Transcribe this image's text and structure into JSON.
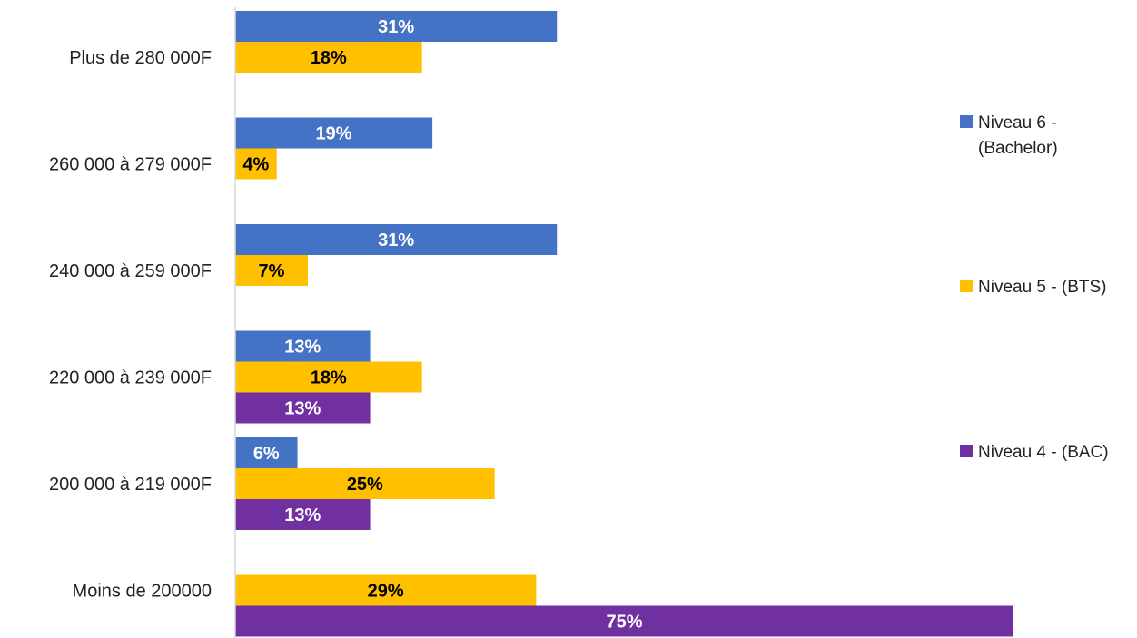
{
  "chart_data": {
    "type": "bar",
    "orientation": "horizontal",
    "categories": [
      "Plus de 280 000F",
      "260 000 à 279 000F",
      "240 000 à 259 000F",
      "220 000 à 239 000F",
      "200 000 à 219 000F",
      "Moins de 200000"
    ],
    "series": [
      {
        "name": "Niveau 6 - (Bachelor)",
        "legend_lines": [
          "Niveau 6 -",
          "(Bachelor)"
        ],
        "color": "#4472C4",
        "label_color": "#ffffff",
        "values": [
          31,
          19,
          31,
          13,
          6,
          null
        ]
      },
      {
        "name": "Niveau 5 - (BTS)",
        "legend_lines": [
          "Niveau 5 - (BTS)"
        ],
        "color": "#FFC000",
        "label_color": "#000000",
        "values": [
          18,
          4,
          7,
          18,
          25,
          29
        ]
      },
      {
        "name": "Niveau 4 - (BAC)",
        "legend_lines": [
          "Niveau 4 - (BAC)"
        ],
        "color": "#7030A0",
        "label_color": "#ffffff",
        "values": [
          null,
          null,
          null,
          13,
          13,
          75
        ]
      }
    ],
    "value_suffix": "%",
    "xlim": [
      0,
      75
    ],
    "grid": false,
    "legend_position": "right",
    "title": "",
    "xlabel": "",
    "ylabel": ""
  }
}
